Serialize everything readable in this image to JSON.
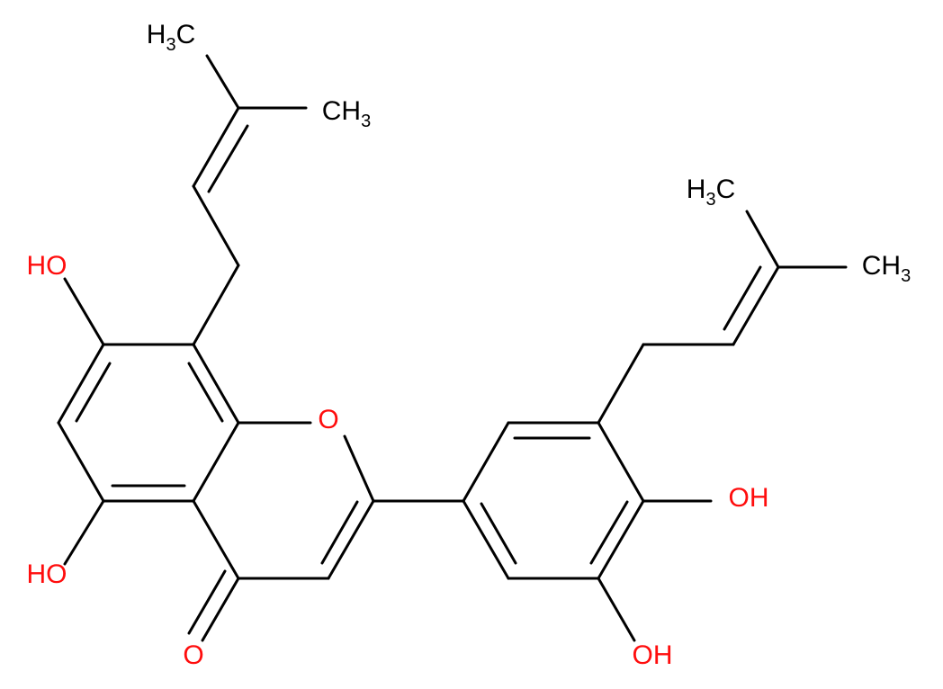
{
  "labels": [
    [
      "H",
      "3",
      "C"
    ],
    [
      "CH",
      "3"
    ],
    [
      "H",
      "3",
      "C"
    ],
    [
      "CH",
      "3"
    ],
    [
      "HO"
    ],
    [
      "HO"
    ],
    [
      "O"
    ],
    [
      "O"
    ],
    [
      "OH"
    ],
    [
      "OH"
    ]
  ]
}
